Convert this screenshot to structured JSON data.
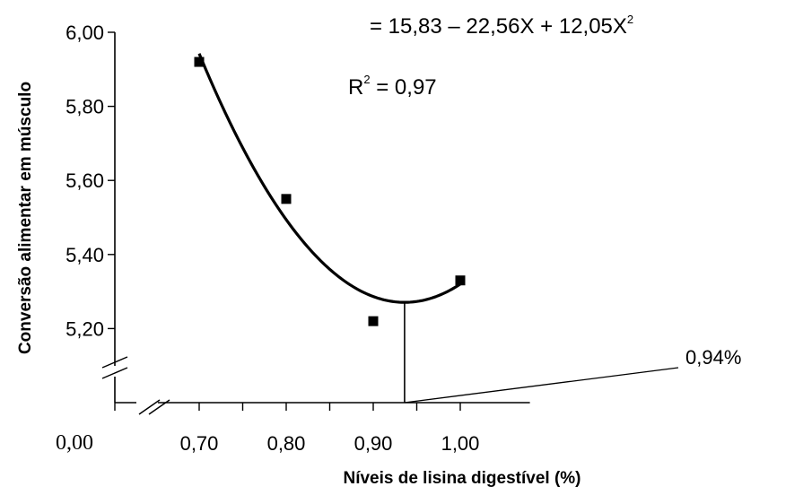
{
  "chart_data": {
    "type": "scatter",
    "xlabel": "Níveis de lisina digestível (%)",
    "ylabel": "Conversão alimentar em músculo",
    "x_ticks": [
      "0,70",
      "0,80",
      "0,90",
      "1,00"
    ],
    "y_ticks": [
      "5,20",
      "5,40",
      "5,60",
      "5,80",
      "6,00"
    ],
    "origin_label": "0,00",
    "xlim": [
      0.6,
      1.08
    ],
    "ylim": [
      5.0,
      6.0
    ],
    "grid": false,
    "series": [
      {
        "points": [
          {
            "x": 0.7,
            "y": 5.92
          },
          {
            "x": 0.8,
            "y": 5.55
          },
          {
            "x": 0.9,
            "y": 5.22
          },
          {
            "x": 1.0,
            "y": 5.33
          }
        ]
      }
    ],
    "fit": {
      "coefficients": [
        15.83,
        -22.56,
        12.05
      ],
      "x_range": [
        0.7,
        1.0
      ],
      "color": "#000000"
    },
    "annotations": {
      "equation": "= 15,83 – 22,56X + 12,05X",
      "equation_exponent": "2",
      "r2_prefix": "R",
      "r2_exponent": "2",
      "r2_value": " = 0,97",
      "optimum_label": "0,94%",
      "optimum_x": 0.936
    }
  }
}
